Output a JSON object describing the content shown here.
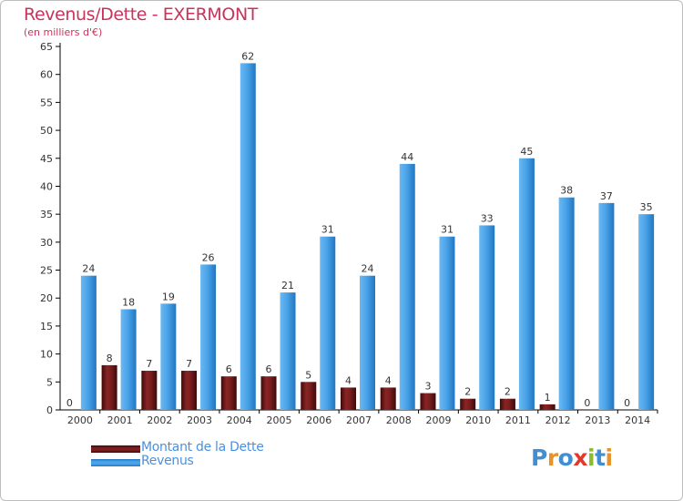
{
  "header": {
    "title": "Revenus/Dette - EXERMONT",
    "subtitle": "(en milliers d'€)"
  },
  "legend": {
    "items": [
      {
        "label": "Montant de la Dette",
        "color": "#7a1e1e"
      },
      {
        "label": "Revenus",
        "color": "#4aa3e8"
      }
    ]
  },
  "branding": {
    "logo_letters": [
      "P",
      "r",
      "o",
      "x",
      "i",
      "t",
      "i"
    ],
    "logo_colors": [
      "#3f8fd2",
      "#e8922a",
      "#3f8fd2",
      "#e23a2a",
      "#8bbb2e",
      "#3f8fd2",
      "#e8922a"
    ]
  },
  "chart_data": {
    "type": "bar",
    "title": "Revenus/Dette - EXERMONT",
    "subtitle": "(en milliers d'€)",
    "xlabel": "",
    "ylabel": "",
    "categories": [
      "2000",
      "2001",
      "2002",
      "2003",
      "2004",
      "2005",
      "2006",
      "2007",
      "2008",
      "2009",
      "2010",
      "2011",
      "2012",
      "2013",
      "2014"
    ],
    "series": [
      {
        "name": "Montant de la Dette",
        "color": "#7a1e1e",
        "values": [
          0,
          8,
          7,
          7,
          6,
          6,
          5,
          4,
          4,
          3,
          2,
          2,
          1,
          0,
          0
        ]
      },
      {
        "name": "Revenus",
        "color": "#4aa3e8",
        "values": [
          24,
          18,
          19,
          26,
          62,
          21,
          31,
          24,
          44,
          31,
          33,
          45,
          38,
          37,
          35
        ]
      }
    ],
    "ylim": [
      0,
      65
    ],
    "yticks": [
      0,
      5,
      10,
      15,
      20,
      25,
      30,
      35,
      40,
      45,
      50,
      55,
      60,
      65
    ],
    "grid": false,
    "legend_position": "bottom-left"
  }
}
